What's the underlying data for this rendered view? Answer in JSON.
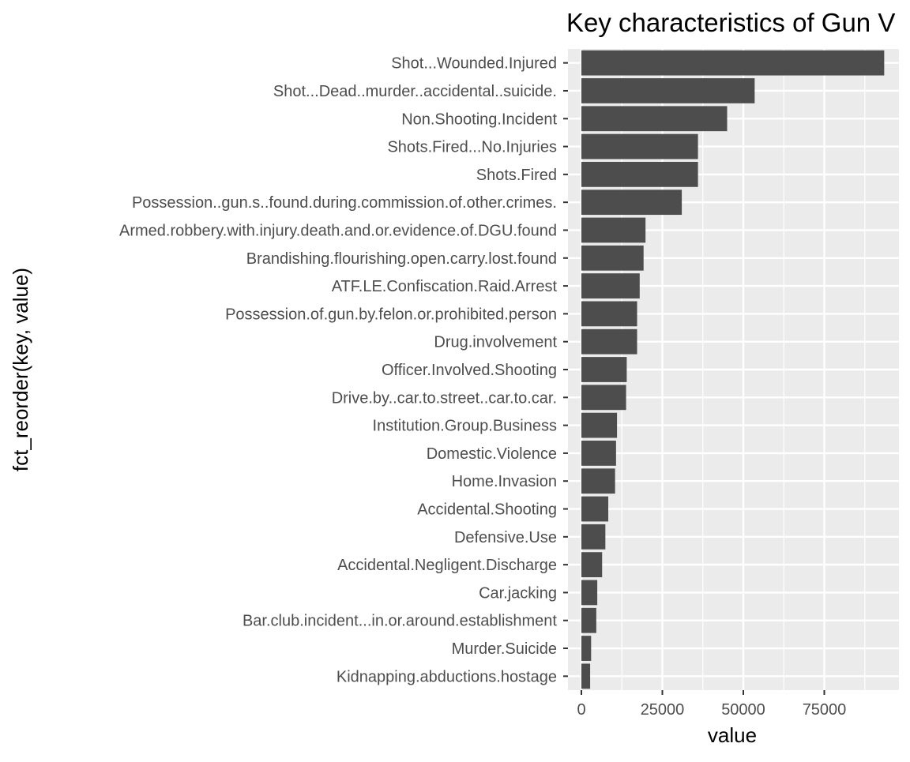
{
  "chart_data": {
    "type": "bar",
    "orientation": "horizontal",
    "title": "Key characteristics of Gun V",
    "xlabel": "value",
    "ylabel": "fct_reorder(key, value)",
    "xlim": [
      0,
      97000
    ],
    "x_ticks": [
      0,
      25000,
      50000,
      75000
    ],
    "x_tick_labels": [
      "0",
      "25000",
      "50000",
      "75000"
    ],
    "grid": true,
    "categories": [
      "Shot...Wounded.Injured",
      "Shot...Dead..murder..accidental..suicide.",
      "Non.Shooting.Incident",
      "Shots.Fired...No.Injuries",
      "Shots.Fired",
      "Possession..gun.s..found.during.commission.of.other.crimes.",
      "Armed.robbery.with.injury.death.and.or.evidence.of.DGU.found",
      "Brandishing.flourishing.open.carry.lost.found",
      "ATF.LE.Confiscation.Raid.Arrest",
      "Possession.of.gun.by.felon.or.prohibited.person",
      "Drug.involvement",
      "Officer.Involved.Shooting",
      "Drive.by..car.to.street..car.to.car.",
      "Institution.Group.Business",
      "Domestic.Violence",
      "Home.Invasion",
      "Accidental.Shooting",
      "Defensive.Use",
      "Accidental.Negligent.Discharge",
      "Car.jacking",
      "Bar.club.incident...in.or.around.establishment",
      "Murder.Suicide",
      "Kidnapping.abductions.hostage"
    ],
    "values": [
      93500,
      53500,
      45000,
      36000,
      36000,
      31000,
      19800,
      19200,
      18000,
      17200,
      17200,
      14000,
      13800,
      11000,
      10700,
      10400,
      8300,
      7400,
      6400,
      4900,
      4600,
      3000,
      2700
    ]
  }
}
